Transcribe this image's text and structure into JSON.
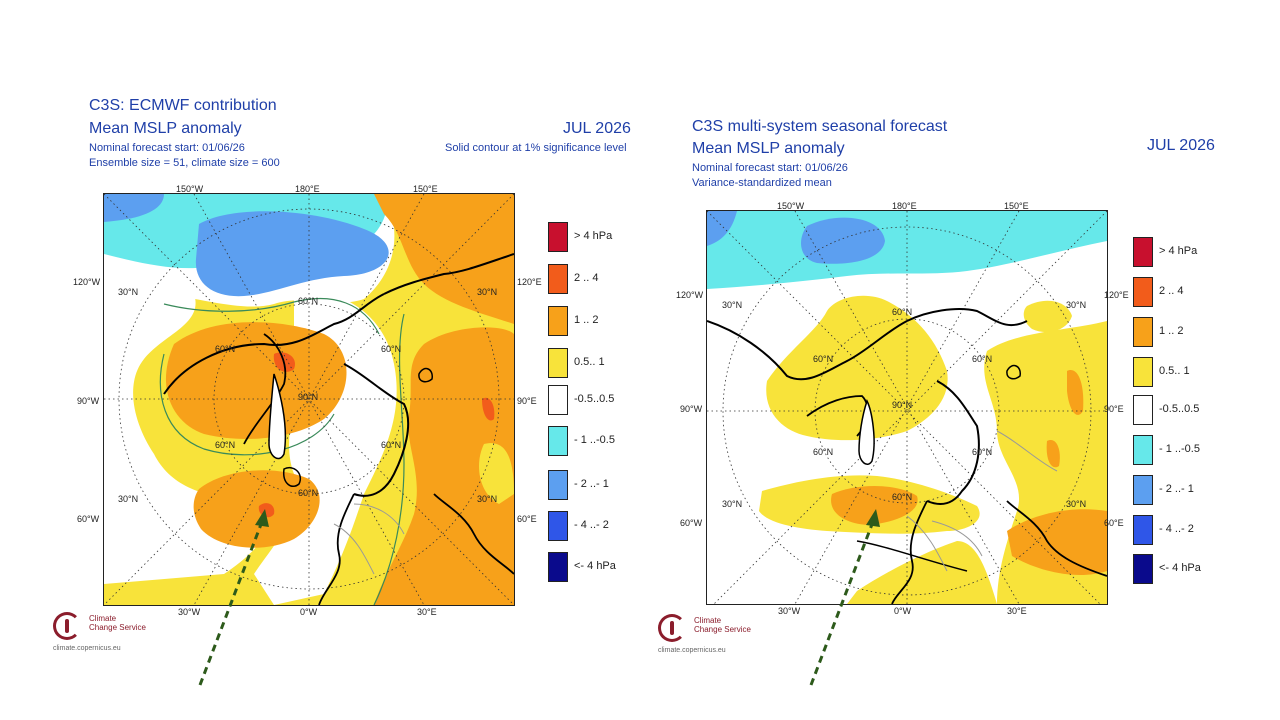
{
  "colors": {
    "title_blue": "#1f3fa8",
    "gt4": "#c8102e",
    "c2_4": "#f25c1b",
    "c1_2": "#f7a11a",
    "c05_1": "#f8e33a",
    "neutral": "#ffffff",
    "m1_m05": "#66e8ea",
    "m2_m1": "#5c9ff0",
    "m4_m2": "#2f56e8",
    "lt_m4": "#0a0a8c",
    "arrow": "#2d5a1b"
  },
  "legend": [
    {
      "label": ">  4 hPa",
      "color_key": "gt4"
    },
    {
      "label": "2 .. 4",
      "color_key": "c2_4"
    },
    {
      "label": "1 .. 2",
      "color_key": "c1_2"
    },
    {
      "label": "0.5.. 1",
      "color_key": "c05_1"
    },
    {
      "label": "-0.5..0.5",
      "color_key": "neutral"
    },
    {
      "label": "- 1 ..-0.5",
      "color_key": "m1_m05"
    },
    {
      "label": "- 2 ..- 1",
      "color_key": "m2_m1"
    },
    {
      "label": "- 4 ..- 2",
      "color_key": "m4_m2"
    },
    {
      "label": "<- 4 hPa",
      "color_key": "lt_m4"
    }
  ],
  "left": {
    "title1": "C3S: ECMWF contribution",
    "title2": "Mean MSLP anomaly",
    "month": "JUL 2026",
    "sub1": "Nominal forecast start: 01/06/26",
    "sub2": "Ensemble size = 51, climate size = 600",
    "note": "Solid contour at 1% significance level",
    "labels": {
      "lon150w": "150°W",
      "lon180": "180°E",
      "lon150e": "150°E",
      "lon120w": "120°W",
      "lon120e": "120°E",
      "lon90w": "90°W",
      "lon90e": "90°E",
      "lon60w": "60°W",
      "lon60e": "60°E",
      "lon30w": "30°W",
      "lon0": "0°W",
      "lon30e": "30°E",
      "lat30_a": "30°N",
      "lat30_b": "30°N",
      "lat30_c": "30°N",
      "lat30_d": "30°N",
      "lat60_a": "60°N",
      "lat60_b": "60°N",
      "lat60_c": "60°N",
      "lat60_d": "60°N",
      "lat60_e": "60°N",
      "lat60_f": "60°N",
      "lat90": "90°N"
    }
  },
  "right": {
    "title1": "C3S multi-system seasonal forecast",
    "title2": "Mean MSLP anomaly",
    "month": "JUL 2026",
    "sub1": "Nominal forecast start: 01/06/26",
    "sub2": "Variance-standardized mean",
    "labels": {
      "lon150w": "150°W",
      "lon180": "180°E",
      "lon150e": "150°E",
      "lon120w": "120°W",
      "lon120e": "120°E",
      "lon90w": "90°W",
      "lon90e": "90°E",
      "lon60w": "60°W",
      "lon60e": "60°E",
      "lon30w": "30°W",
      "lon0": "0°W",
      "lon30e": "30°E",
      "lat30_a": "30°N",
      "lat30_b": "30°N",
      "lat30_c": "30°N",
      "lat30_d": "30°N",
      "lat60_a": "60°N",
      "lat60_b": "60°N",
      "lat60_c": "60°N",
      "lat60_d": "60°N",
      "lat60_e": "60°N",
      "lat60_f": "60°N",
      "lat90": "90°N"
    }
  },
  "logo": {
    "line1": "Climate",
    "line2": "Change Service",
    "url": "climate.copernicus.eu",
    "icon": "thermometer-logo-icon"
  }
}
